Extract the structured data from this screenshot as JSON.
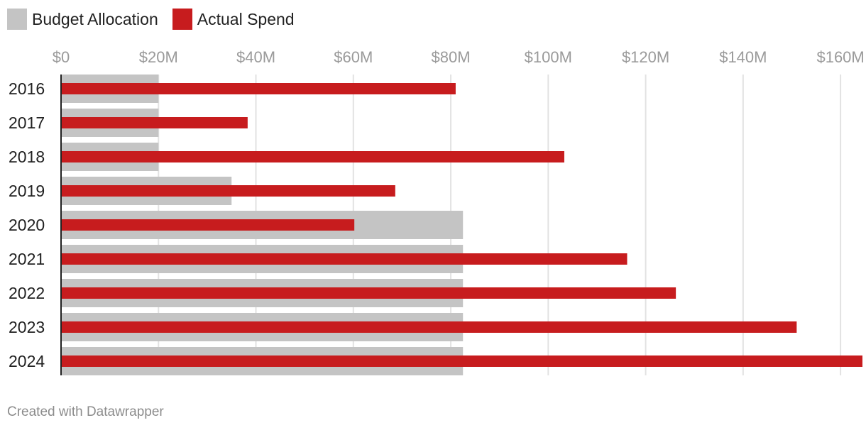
{
  "chart_data": {
    "type": "bar",
    "orientation": "horizontal",
    "title": "",
    "xlabel": "",
    "ylabel": "",
    "categories": [
      "2016",
      "2017",
      "2018",
      "2019",
      "2020",
      "2021",
      "2022",
      "2023",
      "2024"
    ],
    "series": [
      {
        "name": "Budget Allocation",
        "color": "#c4c4c4",
        "values": [
          20,
          20,
          20,
          35,
          82.5,
          82.5,
          82.5,
          82.5,
          82.5
        ]
      },
      {
        "name": "Actual Spend",
        "color": "#c71c1e",
        "values": [
          81,
          38.3,
          103.3,
          68.6,
          60.2,
          116.2,
          126.2,
          151,
          164.5
        ]
      }
    ],
    "xlim": [
      0,
      164.5
    ],
    "xticks": [
      0,
      20,
      40,
      60,
      80,
      100,
      120,
      140,
      160
    ],
    "xtick_labels": [
      "$0",
      "$20M",
      "$40M",
      "$60M",
      "$80M",
      "$100M",
      "$120M",
      "$140M",
      "$160M"
    ],
    "grid": true,
    "legend_position": "top-left"
  },
  "credit": "Created with Datawrapper"
}
